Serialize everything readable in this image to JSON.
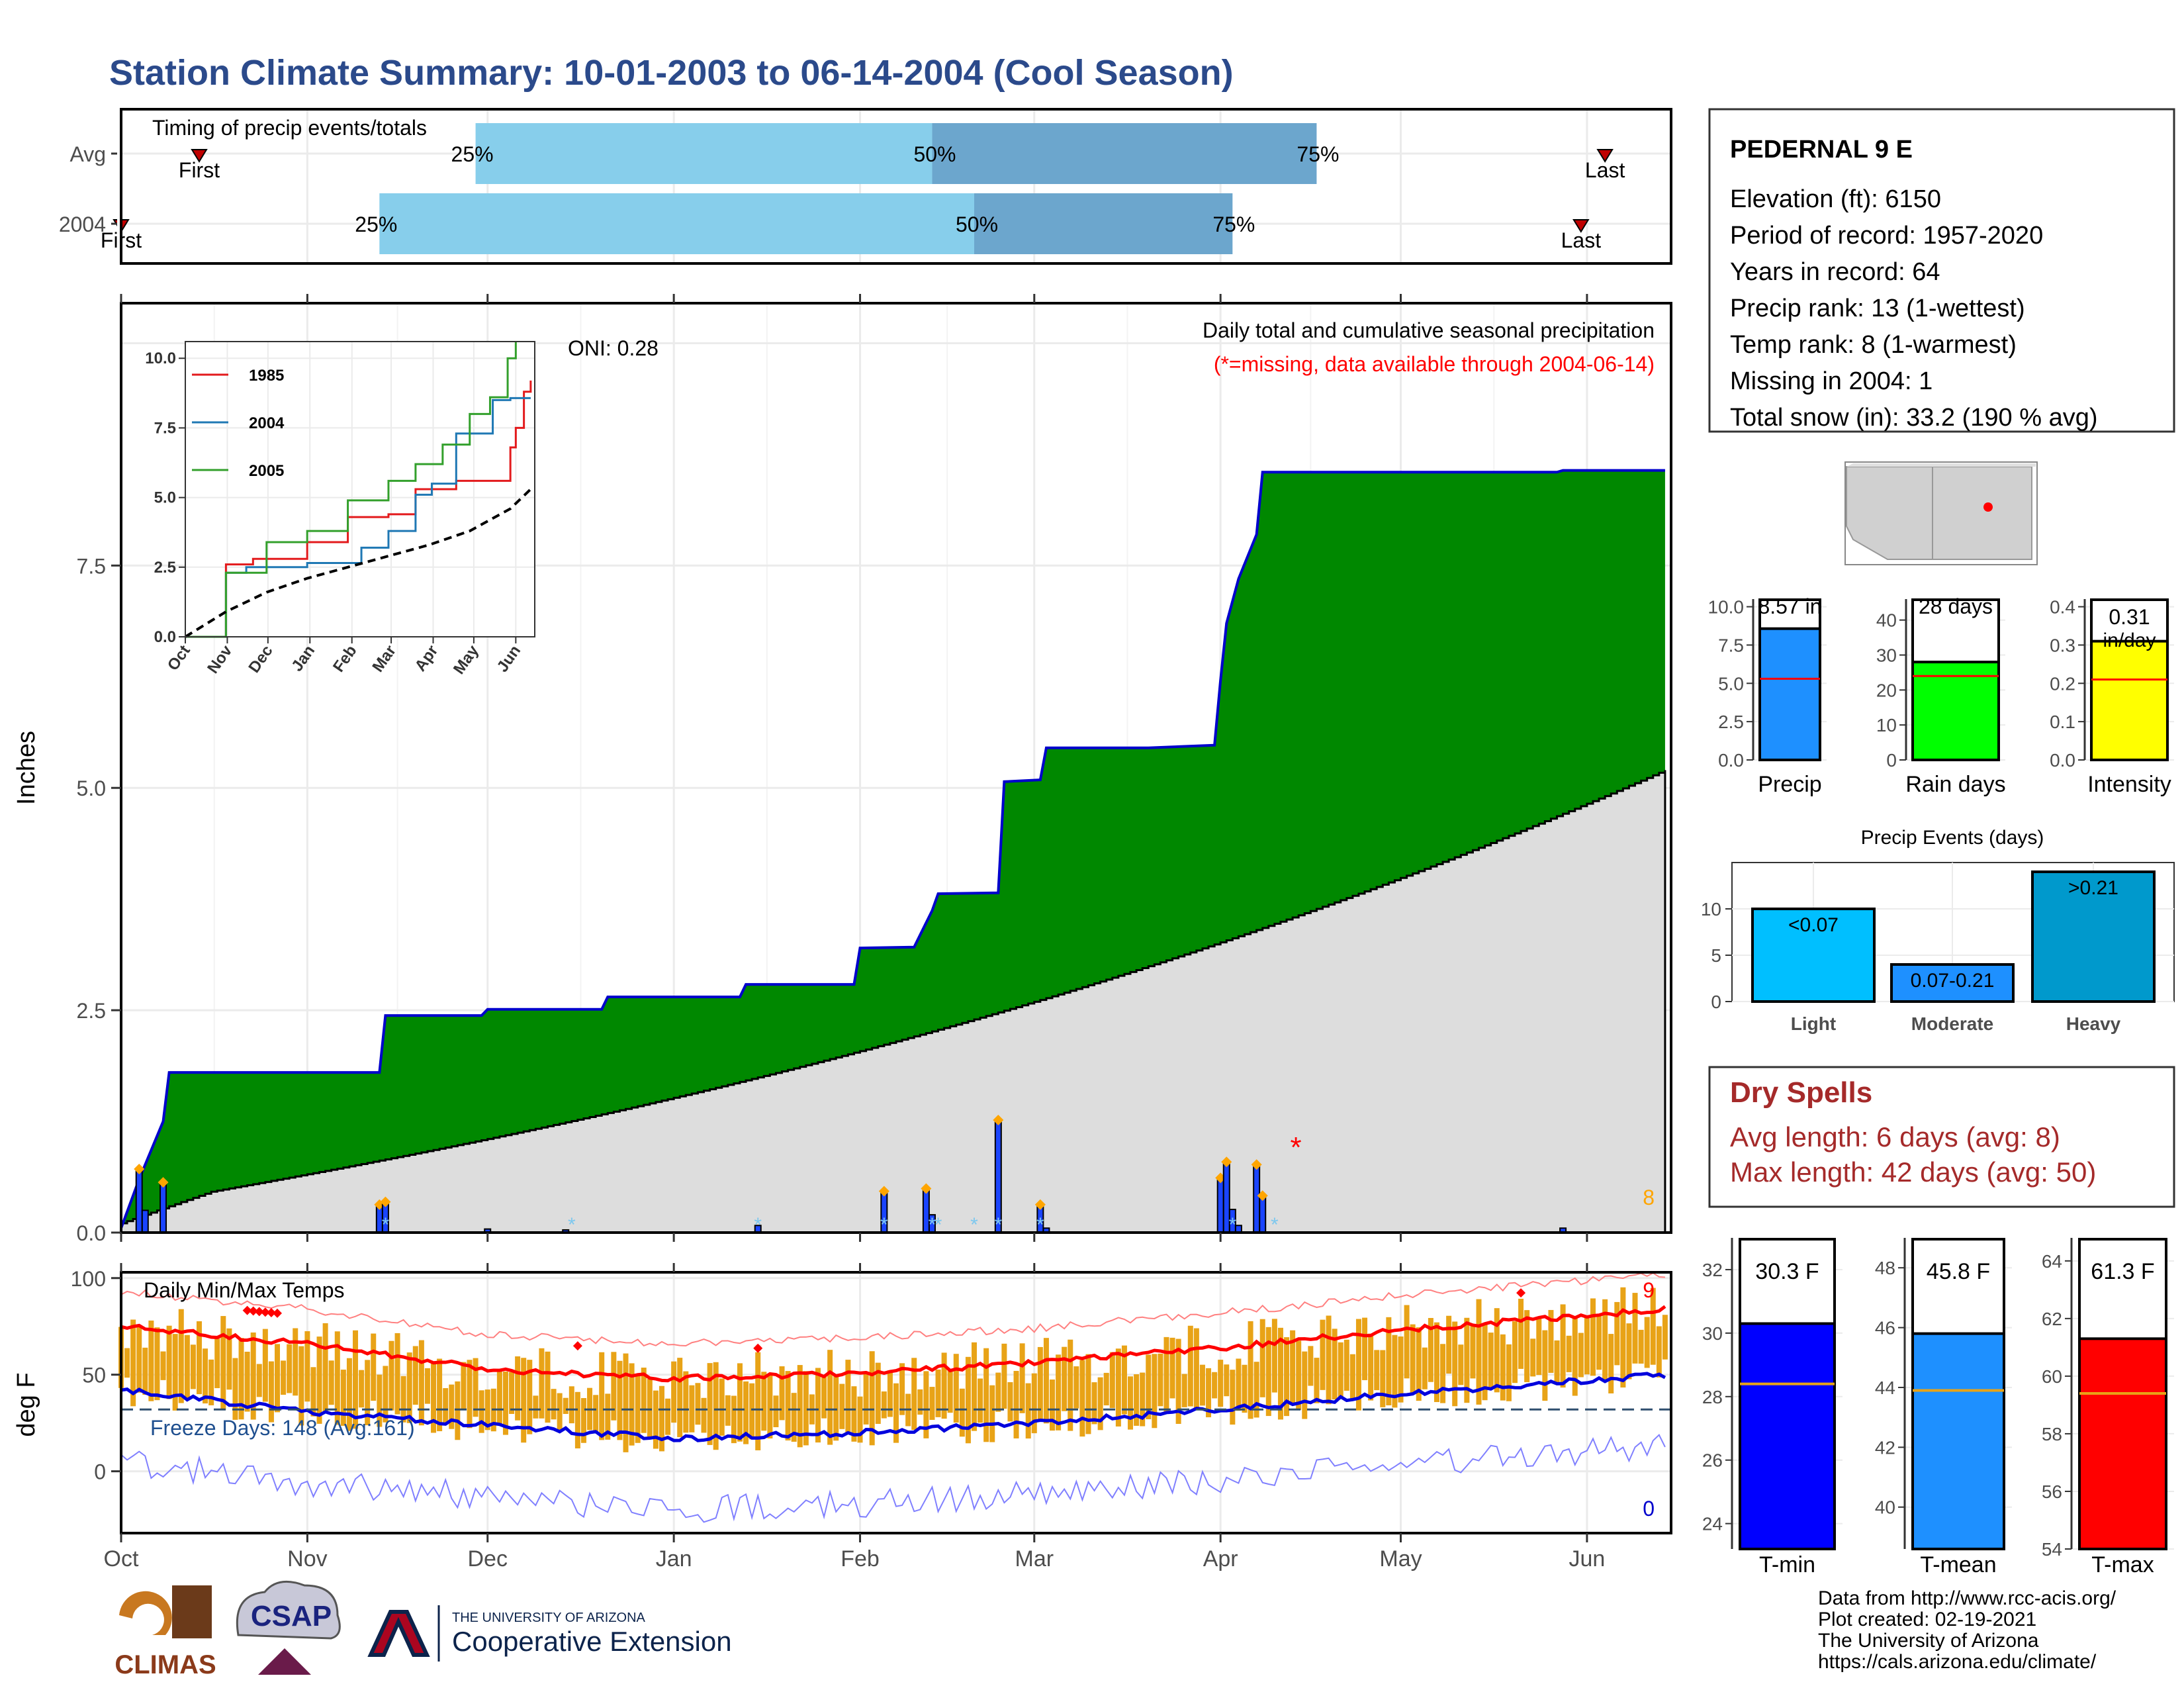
{
  "title": "Station Climate Summary: 10-01-2003 to 06-14-2004 (Cool Season)",
  "colors": {
    "title": "#2b4a8b",
    "precip_fill": "#008800",
    "normal_fill": "#dddddd",
    "cum_line": "#0000cc",
    "daily_bar": "#1a44ff",
    "timing_light": "#87ceeb",
    "timing_dark": "#6ca6cd",
    "temp_bar": "#e8a317",
    "tmax_line": "#ff0000",
    "tmin_line": "#0000dd",
    "dry_spell_text": "#a52a2a"
  },
  "timing_panel": {
    "title": "Timing of precip events/totals",
    "rows": [
      {
        "label": "Avg",
        "first": "2003-10-14",
        "p25": "2003-11-29",
        "p50": "2004-02-13",
        "p75": "2004-04-17",
        "last": "2004-06-04"
      },
      {
        "label": "2004",
        "first": "2003-10-01",
        "p25": "2003-11-13",
        "p50": "2004-02-20",
        "p75": "2004-04-03",
        "last": "2004-05-31"
      }
    ],
    "labels": {
      "first": "First",
      "last": "Last",
      "p25": "25%",
      "p50": "50%",
      "p75": "75%"
    }
  },
  "station_info": {
    "name": "PEDERNAL 9 E",
    "lines": [
      "Elevation (ft): 6150",
      "Period of record: 1957-2020",
      "Years in record: 64",
      "Precip rank: 13 (1-wettest)",
      "Temp rank: 8 (1-warmest)",
      "Missing in 2004: 1",
      "Total snow (in): 33.2 (190 % avg)"
    ]
  },
  "precip_panel": {
    "title": "Daily total and cumulative seasonal precipitation",
    "subtitle": "(*=missing, data available through 2004-06-14)",
    "oni": "ONI: 0.28",
    "ylabel": "Inches",
    "yticks": [
      "0.0",
      "2.5",
      "5.0",
      "7.5"
    ],
    "ylim": [
      0,
      10.45
    ],
    "count_label": "8"
  },
  "inset_panel": {
    "yticks": [
      "0.0",
      "2.5",
      "5.0",
      "7.5",
      "10.0"
    ],
    "xticks": [
      "Oct",
      "Nov",
      "Dec",
      "Jan",
      "Feb",
      "Mar",
      "Apr",
      "May",
      "Jun"
    ],
    "legend": [
      "1985",
      "2004",
      "2005"
    ]
  },
  "temp_panel": {
    "title": "Daily Min/Max Temps",
    "ylabel": "deg F",
    "yticks": [
      "0",
      "50",
      "100"
    ],
    "freeze_label": "Freeze Days: 148 (Avg:161)",
    "max_count": "9",
    "min_count": "0"
  },
  "x_months": [
    "Oct",
    "Nov",
    "Dec",
    "Jan",
    "Feb",
    "Mar",
    "Apr",
    "May",
    "Jun"
  ],
  "summary_bars": [
    {
      "name": "Precip",
      "label": "8.57 in",
      "yticks": [
        "0.0",
        "2.5",
        "5.0",
        "7.5",
        "10.0"
      ]
    },
    {
      "name": "Rain days",
      "label": "28 days",
      "yticks": [
        "0",
        "10",
        "20",
        "30",
        "40"
      ]
    },
    {
      "name": "Intensity",
      "label": "0.31",
      "label2": "in/day",
      "yticks": [
        "0.0",
        "0.1",
        "0.2",
        "0.3",
        "0.4"
      ]
    }
  ],
  "events_panel": {
    "title": "Precip Events (days)",
    "yticks": [
      "0",
      "5",
      "10"
    ],
    "categories": [
      "Light",
      "Moderate",
      "Heavy"
    ],
    "bar_labels": [
      "<0.07",
      "0.07-0.21",
      ">0.21"
    ]
  },
  "dry_spells": {
    "title": "Dry Spells",
    "avg": "Avg length: 6 days (avg: 8)",
    "max": "Max length: 42 days (avg: 50)"
  },
  "temp_summary": [
    {
      "name": "T-min",
      "label": "30.3 F",
      "yticks": [
        "24",
        "26",
        "28",
        "30",
        "32"
      ]
    },
    {
      "name": "T-mean",
      "label": "45.8 F",
      "yticks": [
        "40",
        "42",
        "44",
        "46",
        "48"
      ]
    },
    {
      "name": "T-max",
      "label": "61.3 F",
      "yticks": [
        "54",
        "56",
        "58",
        "60",
        "62",
        "64"
      ]
    }
  ],
  "footer": {
    "lines": [
      "Data from http://www.rcc-acis.org/",
      "Plot created: 02-19-2021",
      "The University of Arizona",
      "https://cals.arizona.edu/climate/"
    ],
    "logo_climas": "CLIMAS",
    "logo_csap": "CSAP",
    "ua_small": "THE UNIVERSITY OF ARIZONA",
    "ua_big": "Cooperative Extension"
  },
  "chart_data": [
    {
      "type": "area",
      "name": "cumulative precipitation",
      "x": [
        "2003-10-01",
        "2003-10-04",
        "2003-10-08",
        "2003-10-09",
        "2003-11-13",
        "2003-11-14",
        "2003-11-30",
        "2003-12-01",
        "2003-12-20",
        "2003-12-21",
        "2004-01-12",
        "2004-01-13",
        "2004-01-31",
        "2004-02-01",
        "2004-02-10",
        "2004-02-13",
        "2004-02-14",
        "2004-02-24",
        "2004-02-25",
        "2004-03-02",
        "2004-03-03",
        "2004-03-20",
        "2004-03-31",
        "2004-04-01",
        "2004-04-02",
        "2004-04-04",
        "2004-04-07",
        "2004-04-08",
        "2004-05-27",
        "2004-05-28",
        "2004-06-14"
      ],
      "y": [
        0.05,
        0.6,
        1.25,
        1.8,
        1.8,
        2.44,
        2.44,
        2.51,
        2.51,
        2.65,
        2.65,
        2.79,
        2.79,
        3.2,
        3.21,
        3.62,
        3.81,
        3.82,
        5.07,
        5.09,
        5.45,
        5.45,
        5.48,
        6.21,
        6.85,
        7.35,
        7.85,
        8.55,
        8.55,
        8.57,
        8.57
      ],
      "normal_end": 5.2,
      "ylabel": "Inches"
    },
    {
      "type": "bar",
      "name": "daily precipitation",
      "x": [
        "2003-10-04",
        "2003-10-05",
        "2003-10-08",
        "2003-11-13",
        "2003-11-14",
        "2003-12-01",
        "2003-12-14",
        "2004-01-15",
        "2004-02-05",
        "2004-02-12",
        "2004-02-13",
        "2004-02-24",
        "2004-03-02",
        "2004-03-03",
        "2004-04-01",
        "2004-04-02",
        "2004-04-03",
        "2004-04-04",
        "2004-04-07",
        "2004-04-08",
        "2004-05-28"
      ],
      "values": [
        0.7,
        0.25,
        0.55,
        0.3,
        0.33,
        0.04,
        0.03,
        0.08,
        0.45,
        0.48,
        0.2,
        1.25,
        0.3,
        0.05,
        0.6,
        0.78,
        0.26,
        0.08,
        0.75,
        0.4,
        0.05
      ],
      "missing": [
        "2004-04-13"
      ]
    },
    {
      "type": "line",
      "name": "inset cumulative comparison",
      "series": [
        {
          "name": "1985",
          "x": [
            0,
            30,
            50,
            90,
            120,
            150,
            170,
            200,
            240,
            244,
            250,
            255
          ],
          "y": [
            0,
            2.6,
            2.8,
            3.4,
            4.3,
            4.4,
            5.3,
            5.6,
            6.8,
            7.5,
            8.8,
            9.2
          ]
        },
        {
          "name": "2004",
          "x": [
            0,
            30,
            45,
            90,
            130,
            150,
            170,
            182,
            200,
            227,
            240,
            255
          ],
          "y": [
            0,
            2.3,
            2.5,
            2.65,
            3.2,
            3.8,
            5.1,
            5.5,
            7.3,
            8.5,
            8.57,
            8.57
          ]
        },
        {
          "name": "2005",
          "x": [
            0,
            30,
            60,
            90,
            120,
            150,
            170,
            190,
            210,
            225,
            238,
            244
          ],
          "y": [
            0,
            2.3,
            3.4,
            3.8,
            4.9,
            5.6,
            6.2,
            6.9,
            8.0,
            8.6,
            10.0,
            10.6
          ]
        },
        {
          "name": "",
          "x": [
            0,
            30,
            60,
            90,
            120,
            150,
            180,
            210,
            240,
            255
          ],
          "y": [
            0,
            0.9,
            1.6,
            2.1,
            2.5,
            2.9,
            3.3,
            3.8,
            4.6,
            5.3
          ]
        }
      ]
    },
    {
      "type": "bar",
      "name": "seasonal summary",
      "categories": [
        "Precip",
        "Rain days",
        "Intensity"
      ],
      "values": [
        8.57,
        28,
        0.31
      ],
      "normals": [
        5.3,
        24,
        0.21
      ],
      "ylims": [
        [
          0,
          10.5
        ],
        [
          0,
          46
        ],
        [
          0,
          0.42
        ]
      ]
    },
    {
      "type": "bar",
      "name": "precip events",
      "categories": [
        "Light",
        "Moderate",
        "Heavy"
      ],
      "values": [
        10,
        4,
        14
      ],
      "ylim": [
        0,
        15
      ]
    },
    {
      "type": "bar",
      "name": "temperature summary",
      "categories": [
        "T-min",
        "T-mean",
        "T-max"
      ],
      "values": [
        30.3,
        45.8,
        61.3
      ],
      "normals": [
        28.4,
        43.9,
        59.4
      ],
      "ylims": [
        [
          23.2,
          33
        ],
        [
          38.6,
          49
        ],
        [
          54,
          64.8
        ]
      ]
    },
    {
      "type": "line",
      "name": "daily temperature normals",
      "series": [
        {
          "name": "tmax normal",
          "x": [
            "2003-10-01",
            "2003-11-01",
            "2003-12-01",
            "2004-01-01",
            "2004-02-01",
            "2004-03-01",
            "2004-04-01",
            "2004-05-01",
            "2004-06-14"
          ],
          "y": [
            75,
            66,
            53,
            48,
            51,
            56,
            64,
            73,
            84
          ]
        },
        {
          "name": "tmin normal",
          "x": [
            "2003-10-01",
            "2003-11-01",
            "2003-12-01",
            "2004-01-01",
            "2004-02-01",
            "2004-03-01",
            "2004-04-01",
            "2004-05-01",
            "2004-06-14"
          ],
          "y": [
            42,
            31,
            24,
            17,
            20,
            25,
            32,
            40,
            50
          ]
        }
      ],
      "freeze_line": 32,
      "ylim": [
        -32,
        103
      ]
    }
  ]
}
